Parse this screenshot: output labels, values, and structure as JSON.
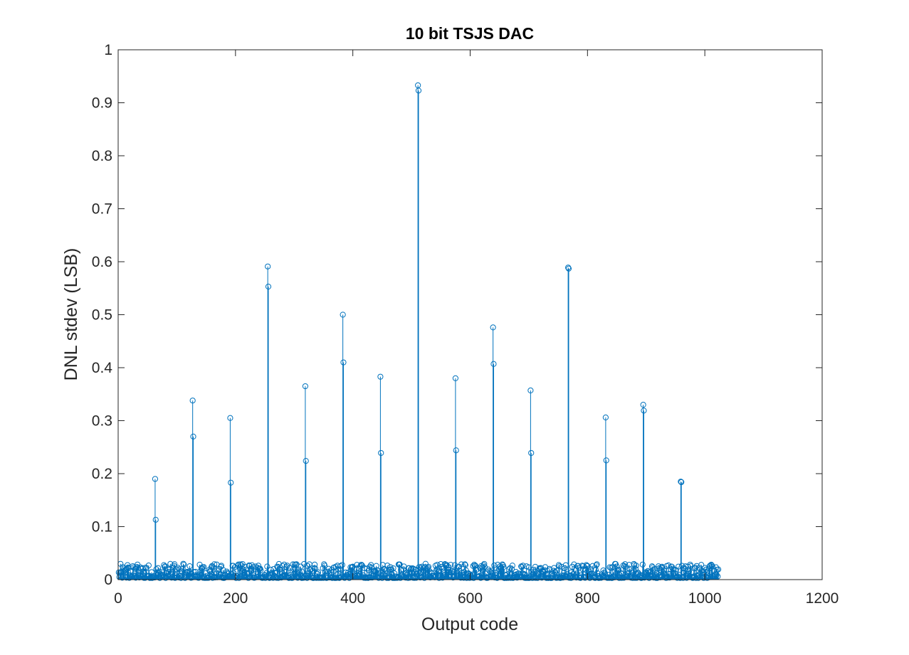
{
  "chart_data": {
    "type": "stem",
    "title": "10 bit TSJS DAC",
    "xlabel": "Output code",
    "ylabel": "DNL stdev (LSB)",
    "xlim": [
      0,
      1200
    ],
    "ylim": [
      0,
      1
    ],
    "xticks": [
      "0",
      "200",
      "400",
      "600",
      "800",
      "1000",
      "1200"
    ],
    "yticks": [
      "0",
      "0.1",
      "0.2",
      "0.3",
      "0.4",
      "0.5",
      "0.6",
      "0.7",
      "0.8",
      "0.9",
      "1"
    ],
    "grid": false,
    "marker": "open-circle",
    "color": "#0072BD",
    "n_codes": 1023,
    "baseline_range": [
      0.003,
      0.03
    ],
    "peaks": [
      {
        "x": 63,
        "y": 0.19
      },
      {
        "x": 64,
        "y": 0.113
      },
      {
        "x": 127,
        "y": 0.338
      },
      {
        "x": 128,
        "y": 0.27
      },
      {
        "x": 191,
        "y": 0.305
      },
      {
        "x": 192,
        "y": 0.183
      },
      {
        "x": 255,
        "y": 0.591
      },
      {
        "x": 256,
        "y": 0.553
      },
      {
        "x": 319,
        "y": 0.365
      },
      {
        "x": 320,
        "y": 0.224
      },
      {
        "x": 383,
        "y": 0.5
      },
      {
        "x": 384,
        "y": 0.41
      },
      {
        "x": 447,
        "y": 0.383
      },
      {
        "x": 448,
        "y": 0.239
      },
      {
        "x": 511,
        "y": 0.933
      },
      {
        "x": 512,
        "y": 0.923
      },
      {
        "x": 575,
        "y": 0.38
      },
      {
        "x": 576,
        "y": 0.244
      },
      {
        "x": 639,
        "y": 0.476
      },
      {
        "x": 640,
        "y": 0.407
      },
      {
        "x": 703,
        "y": 0.357
      },
      {
        "x": 704,
        "y": 0.239
      },
      {
        "x": 767,
        "y": 0.589
      },
      {
        "x": 768,
        "y": 0.587
      },
      {
        "x": 831,
        "y": 0.306
      },
      {
        "x": 832,
        "y": 0.225
      },
      {
        "x": 895,
        "y": 0.33
      },
      {
        "x": 896,
        "y": 0.319
      },
      {
        "x": 959,
        "y": 0.185
      },
      {
        "x": 960,
        "y": 0.184
      }
    ]
  }
}
